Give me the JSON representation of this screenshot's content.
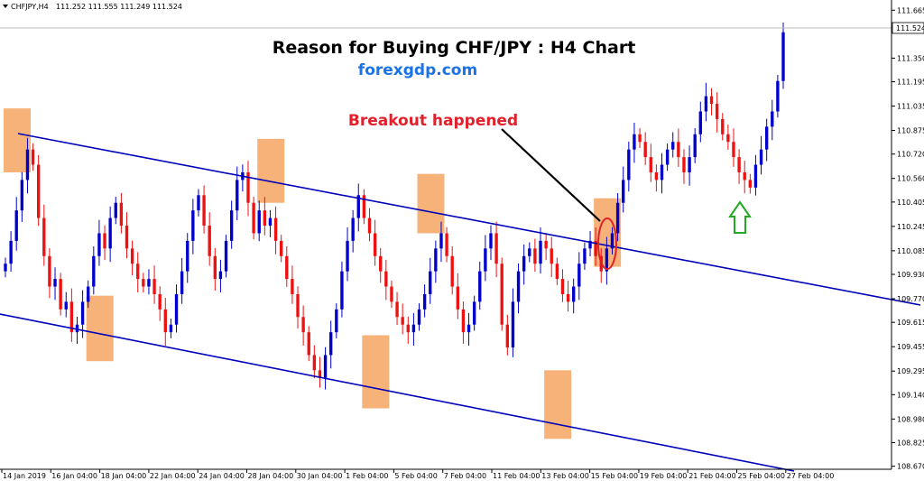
{
  "chart_data": {
    "type": "candlestick",
    "symbol_label": "CHFJPY,H4",
    "ohlc_header": "111.252 111.555 111.249 111.524",
    "title": "Reason for Buying CHF/JPY : H4 Chart",
    "subtitle": "forexgdp.com",
    "annotation": "Breakout happened",
    "current_price": "111.524",
    "ylim": [
      108.65,
      111.72
    ],
    "y_ticks": [
      "111.665",
      "111.524",
      "111.350",
      "111.195",
      "111.035",
      "110.875",
      "110.720",
      "110.560",
      "110.405",
      "110.245",
      "110.085",
      "109.930",
      "109.770",
      "109.615",
      "109.455",
      "109.295",
      "109.140",
      "108.980",
      "108.825",
      "108.670"
    ],
    "x_ticks": [
      "14 Jan 2019",
      "16 Jan 04:00",
      "18 Jan 04:00",
      "22 Jan 04:00",
      "24 Jan 04:00",
      "28 Jan 04:00",
      "30 Jan 04:00",
      "1 Feb 04:00",
      "5 Feb 04:00",
      "7 Feb 04:00",
      "11 Feb 04:00",
      "13 Feb 04:00",
      "15 Feb 04:00",
      "19 Feb 04:00",
      "21 Feb 04:00",
      "25 Feb 04:00",
      "27 Feb 04:00"
    ],
    "colors": {
      "bull": "#0000cc",
      "bear": "#ee1111",
      "channel": "#0000bb",
      "zone": "#f4a460",
      "arrow": "#22aa22",
      "ellipse": "#e0202a"
    },
    "closes": [
      110.0,
      110.15,
      110.35,
      110.55,
      110.75,
      110.65,
      110.3,
      110.05,
      109.85,
      109.9,
      109.7,
      109.75,
      109.55,
      109.6,
      109.75,
      109.85,
      110.05,
      110.2,
      110.1,
      110.3,
      110.4,
      110.25,
      110.1,
      110.0,
      109.9,
      109.85,
      109.9,
      109.8,
      109.7,
      109.55,
      109.6,
      109.8,
      109.95,
      110.15,
      110.35,
      110.45,
      110.25,
      110.05,
      109.9,
      109.95,
      110.15,
      110.35,
      110.55,
      110.6,
      110.4,
      110.2,
      110.35,
      110.25,
      110.3,
      110.15,
      110.05,
      109.9,
      109.8,
      109.65,
      109.55,
      109.4,
      109.3,
      109.25,
      109.4,
      109.55,
      109.7,
      109.95,
      110.15,
      110.3,
      110.45,
      110.3,
      110.2,
      110.05,
      109.95,
      109.85,
      109.75,
      109.65,
      109.6,
      109.55,
      109.6,
      109.7,
      109.8,
      109.95,
      110.1,
      110.2,
      110.05,
      109.85,
      109.7,
      109.55,
      109.6,
      109.75,
      109.95,
      110.1,
      110.2,
      110.0,
      109.6,
      109.45,
      109.75,
      109.95,
      110.05,
      110.1,
      110.0,
      110.15,
      110.1,
      110.0,
      109.9,
      109.8,
      109.75,
      109.85,
      110.0,
      110.1,
      110.15,
      110.05,
      109.95,
      110.1,
      110.2,
      110.4,
      110.55,
      110.75,
      110.85,
      110.8,
      110.7,
      110.6,
      110.55,
      110.65,
      110.75,
      110.8,
      110.7,
      110.6,
      110.7,
      110.85,
      111.0,
      111.1,
      111.05,
      110.95,
      110.85,
      110.8,
      110.7,
      110.6,
      110.55,
      110.5,
      110.65,
      110.75,
      110.9,
      111.0,
      111.2,
      111.52
    ],
    "zones": [
      {
        "x": 0,
        "hi": 111.02,
        "lo": 110.6
      },
      {
        "x": 15,
        "hi": 109.79,
        "lo": 109.36
      },
      {
        "x": 46,
        "hi": 110.82,
        "lo": 110.4
      },
      {
        "x": 65,
        "hi": 109.53,
        "lo": 109.05
      },
      {
        "x": 75,
        "hi": 110.59,
        "lo": 110.2
      },
      {
        "x": 98,
        "hi": 109.3,
        "lo": 108.85
      },
      {
        "x": 107,
        "hi": 110.43,
        "lo": 109.98
      }
    ]
  }
}
